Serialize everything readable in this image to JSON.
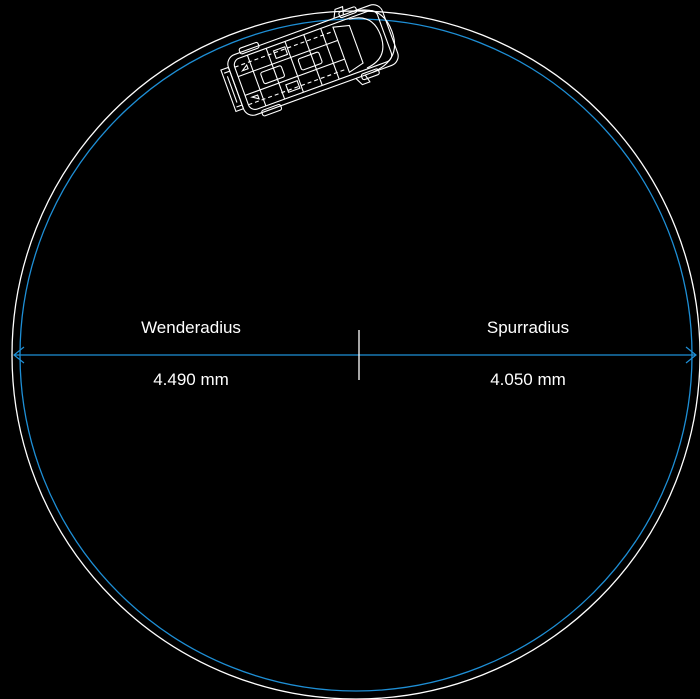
{
  "turning_radius": {
    "label": "Wenderadius",
    "value": "4.490 mm"
  },
  "track_radius": {
    "label": "Spurradius",
    "value": "4.050 mm"
  },
  "colors": {
    "background": "#000000",
    "turning_circle": "#ffffff",
    "track_circle": "#1e8fd6",
    "text": "#ffffff"
  },
  "icons": {
    "vehicle": "van-outline-top-view-icon"
  }
}
